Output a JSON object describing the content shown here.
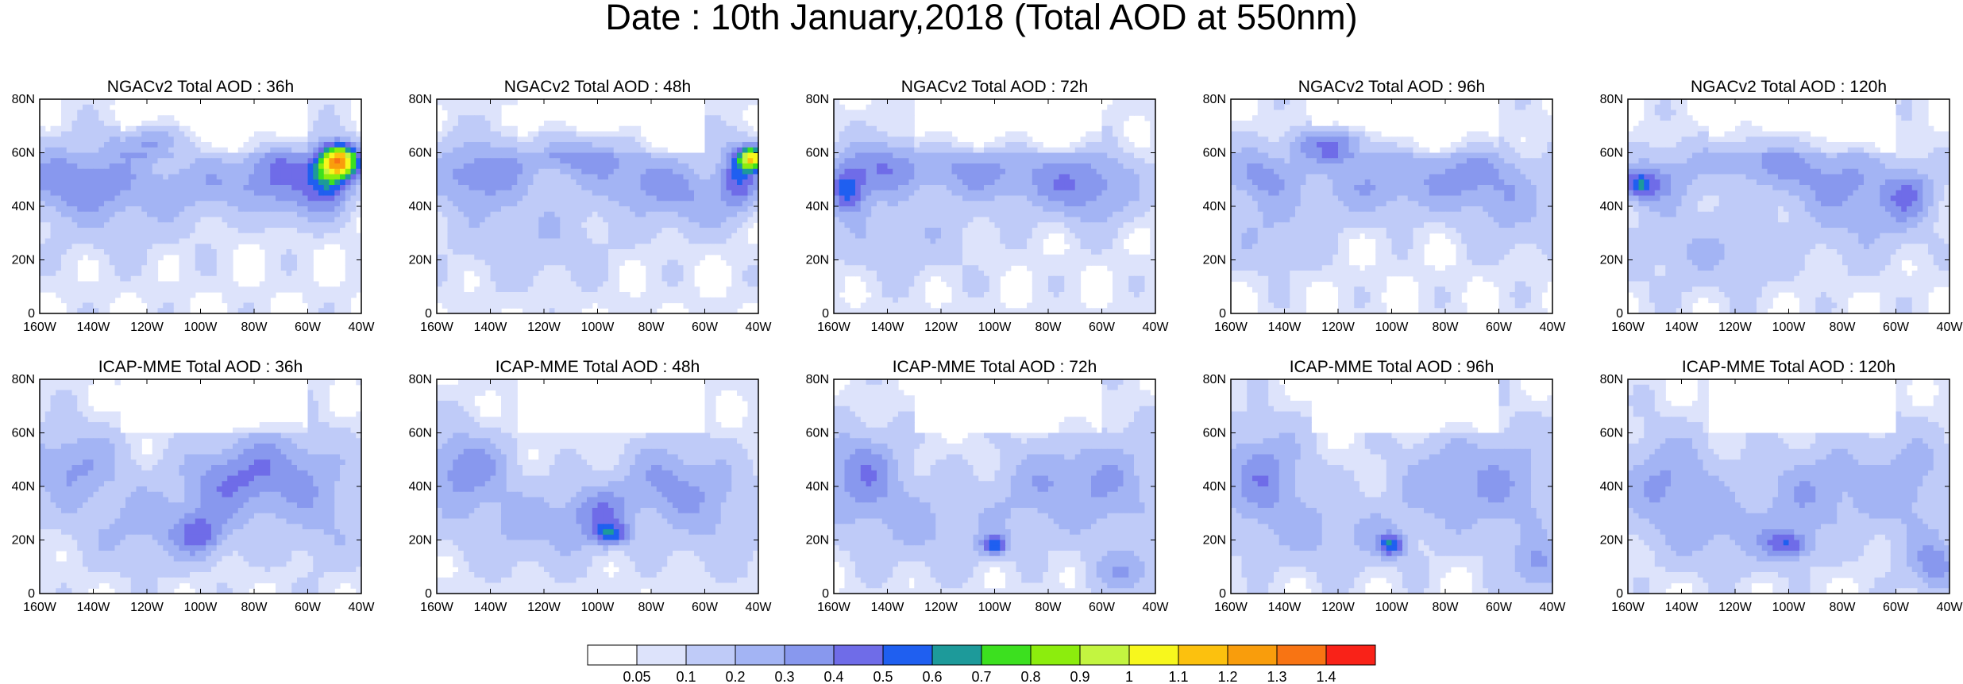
{
  "title": "Date : 10th January,2018 (Total AOD at 550nm)",
  "colors": {
    "land_outline": "#000000",
    "background": "#ffffff"
  },
  "chart_data": {
    "type": "heatmap",
    "variable": "Total AOD at 550nm",
    "date": "10th January,2018",
    "xlim": [
      -160,
      -40
    ],
    "ylim": [
      0,
      80
    ],
    "x_ticks": [
      "160W",
      "140W",
      "120W",
      "100W",
      "80W",
      "60W",
      "40W"
    ],
    "y_ticks": [
      "0",
      "20N",
      "40N",
      "60N",
      "80N"
    ],
    "colorbar": {
      "labels": [
        "0.05",
        "0.1",
        "0.2",
        "0.3",
        "0.4",
        "0.5",
        "0.6",
        "0.7",
        "0.8",
        "0.9",
        "1",
        "1.1",
        "1.2",
        "1.3",
        "1.4"
      ],
      "colors": [
        "#ffffff",
        "#dde3fb",
        "#bfcbf8",
        "#a3b4f4",
        "#8898ee",
        "#6f6ce8",
        "#1f5ff0",
        "#1d9a9a",
        "#3ce01f",
        "#8ced0d",
        "#c3f540",
        "#f7f71d",
        "#fcc10e",
        "#f99d0c",
        "#f87413",
        "#f92218"
      ]
    },
    "panels": [
      {
        "title": "NGACv2 Total AOD : 36h",
        "model": "NGACv2",
        "lead": "36h",
        "blobs": [
          [
            -148,
            50,
            22,
            12,
            0.28
          ],
          [
            -118,
            64,
            14,
            6,
            0.3
          ],
          [
            -92,
            48,
            25,
            10,
            0.2
          ],
          [
            -72,
            56,
            12,
            10,
            0.25
          ],
          [
            -48,
            57,
            7,
            6,
            0.95
          ],
          [
            -52,
            52,
            9,
            10,
            0.5
          ],
          [
            -62,
            42,
            14,
            10,
            0.2
          ],
          [
            -130,
            40,
            30,
            18,
            0.12
          ]
        ]
      },
      {
        "title": "NGACv2 Total AOD : 48h",
        "model": "NGACv2",
        "lead": "48h",
        "blobs": [
          [
            -145,
            52,
            18,
            12,
            0.3
          ],
          [
            -108,
            60,
            20,
            8,
            0.28
          ],
          [
            -85,
            50,
            18,
            10,
            0.22
          ],
          [
            -42,
            58,
            5,
            4,
            0.85
          ],
          [
            -47,
            52,
            8,
            12,
            0.4
          ],
          [
            -65,
            42,
            18,
            12,
            0.2
          ],
          [
            -125,
            30,
            30,
            18,
            0.12
          ]
        ]
      },
      {
        "title": "NGACv2 Total AOD : 72h",
        "model": "NGACv2",
        "lead": "72h",
        "blobs": [
          [
            -155,
            46,
            7,
            9,
            0.45
          ],
          [
            -143,
            55,
            14,
            10,
            0.3
          ],
          [
            -112,
            54,
            20,
            10,
            0.22
          ],
          [
            -80,
            50,
            24,
            12,
            0.22
          ],
          [
            -62,
            46,
            16,
            14,
            0.2
          ],
          [
            -135,
            30,
            28,
            16,
            0.12
          ]
        ]
      },
      {
        "title": "NGACv2 Total AOD : 96h",
        "model": "NGACv2",
        "lead": "96h",
        "blobs": [
          [
            -122,
            63,
            14,
            6,
            0.4
          ],
          [
            -150,
            52,
            14,
            10,
            0.25
          ],
          [
            -105,
            48,
            28,
            12,
            0.22
          ],
          [
            -70,
            52,
            18,
            12,
            0.22
          ],
          [
            -145,
            30,
            20,
            14,
            0.14
          ],
          [
            -55,
            38,
            16,
            16,
            0.15
          ]
        ]
      },
      {
        "title": "NGACv2 Total AOD : 120h",
        "model": "NGACv2",
        "lead": "120h",
        "blobs": [
          [
            -156,
            48,
            6,
            5,
            0.4
          ],
          [
            -148,
            50,
            12,
            10,
            0.25
          ],
          [
            -112,
            58,
            22,
            10,
            0.22
          ],
          [
            -85,
            50,
            20,
            12,
            0.22
          ],
          [
            -55,
            45,
            10,
            10,
            0.28
          ],
          [
            -130,
            25,
            30,
            16,
            0.14
          ],
          [
            -70,
            35,
            20,
            16,
            0.15
          ]
        ]
      },
      {
        "title": "ICAP-MME Total AOD : 36h",
        "model": "ICAP-MME",
        "lead": "36h",
        "blobs": [
          [
            -148,
            48,
            18,
            14,
            0.25
          ],
          [
            -90,
            42,
            18,
            14,
            0.25
          ],
          [
            -100,
            22,
            10,
            8,
            0.28
          ],
          [
            -70,
            48,
            20,
            14,
            0.2
          ],
          [
            -120,
            25,
            30,
            16,
            0.16
          ],
          [
            -55,
            30,
            20,
            20,
            0.15
          ]
        ]
      },
      {
        "title": "ICAP-MME Total AOD : 48h",
        "model": "ICAP-MME",
        "lead": "48h",
        "blobs": [
          [
            -150,
            47,
            16,
            14,
            0.3
          ],
          [
            -95,
            22,
            6,
            4,
            0.4
          ],
          [
            -100,
            30,
            12,
            10,
            0.25
          ],
          [
            -75,
            42,
            18,
            14,
            0.22
          ],
          [
            -125,
            25,
            30,
            16,
            0.16
          ],
          [
            -55,
            30,
            20,
            20,
            0.15
          ]
        ]
      },
      {
        "title": "ICAP-MME Total AOD : 72h",
        "model": "ICAP-MME",
        "lead": "72h",
        "blobs": [
          [
            -150,
            45,
            16,
            16,
            0.3
          ],
          [
            -100,
            18,
            5,
            4,
            0.45
          ],
          [
            -80,
            40,
            20,
            16,
            0.2
          ],
          [
            -55,
            40,
            18,
            22,
            0.18
          ],
          [
            -125,
            25,
            30,
            16,
            0.15
          ],
          [
            -50,
            8,
            14,
            8,
            0.2
          ]
        ]
      },
      {
        "title": "ICAP-MME Total AOD : 96h",
        "model": "ICAP-MME",
        "lead": "96h",
        "blobs": [
          [
            -148,
            44,
            16,
            18,
            0.3
          ],
          [
            -100,
            18,
            5,
            4,
            0.45
          ],
          [
            -80,
            42,
            20,
            16,
            0.2
          ],
          [
            -55,
            40,
            18,
            22,
            0.18
          ],
          [
            -120,
            22,
            30,
            14,
            0.16
          ],
          [
            -45,
            10,
            10,
            10,
            0.25
          ]
        ]
      },
      {
        "title": "ICAP-MME Total AOD : 120h",
        "model": "ICAP-MME",
        "lead": "120h",
        "blobs": [
          [
            -145,
            42,
            18,
            18,
            0.25
          ],
          [
            -100,
            18,
            8,
            5,
            0.35
          ],
          [
            -90,
            40,
            22,
            16,
            0.2
          ],
          [
            -55,
            40,
            18,
            22,
            0.18
          ],
          [
            -120,
            22,
            30,
            14,
            0.16
          ],
          [
            -45,
            10,
            10,
            10,
            0.28
          ]
        ]
      }
    ]
  }
}
